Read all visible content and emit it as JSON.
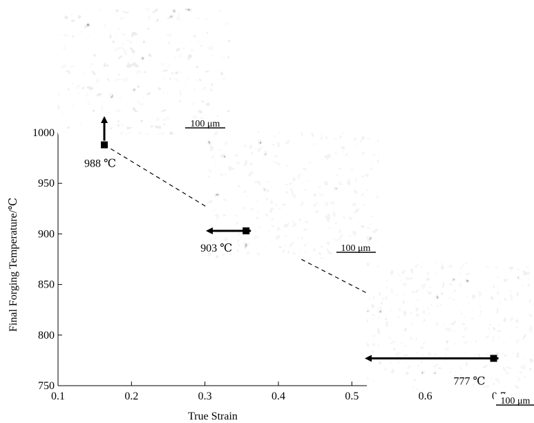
{
  "chart_data": {
    "type": "scatter",
    "xlabel": "True Strain",
    "ylabel": "Final Forging Temperature/℃",
    "xlim": [
      0.1,
      0.7
    ],
    "ylim": [
      750,
      1000
    ],
    "x_ticks": [
      0.1,
      0.2,
      0.3,
      0.4,
      0.5,
      0.6,
      0.7
    ],
    "y_ticks": [
      750,
      800,
      850,
      900,
      950,
      1000
    ],
    "x_tick_labels": [
      "0.1",
      "0.2",
      "0.3",
      "0.4",
      "0.5",
      "0.6",
      "0.7"
    ],
    "y_tick_labels": [
      "750",
      "800",
      "850",
      "900",
      "950",
      "1000"
    ],
    "series": [
      {
        "points": [
          {
            "x": 0.163,
            "y": 988,
            "label": "988 ℃"
          },
          {
            "x": 0.356,
            "y": 903,
            "label": "903 ℃"
          },
          {
            "x": 0.693,
            "y": 777,
            "label": "777 ℃"
          }
        ],
        "line_style": "dashed",
        "marker": "square"
      }
    ],
    "grid": false,
    "micrographs": [
      {
        "point_index": 0,
        "scale_bar": "100  μm",
        "arrow": "up"
      },
      {
        "point_index": 1,
        "scale_bar": "100  μm",
        "arrow": "right"
      },
      {
        "point_index": 2,
        "scale_bar": "100  μm",
        "arrow": "right"
      }
    ]
  }
}
